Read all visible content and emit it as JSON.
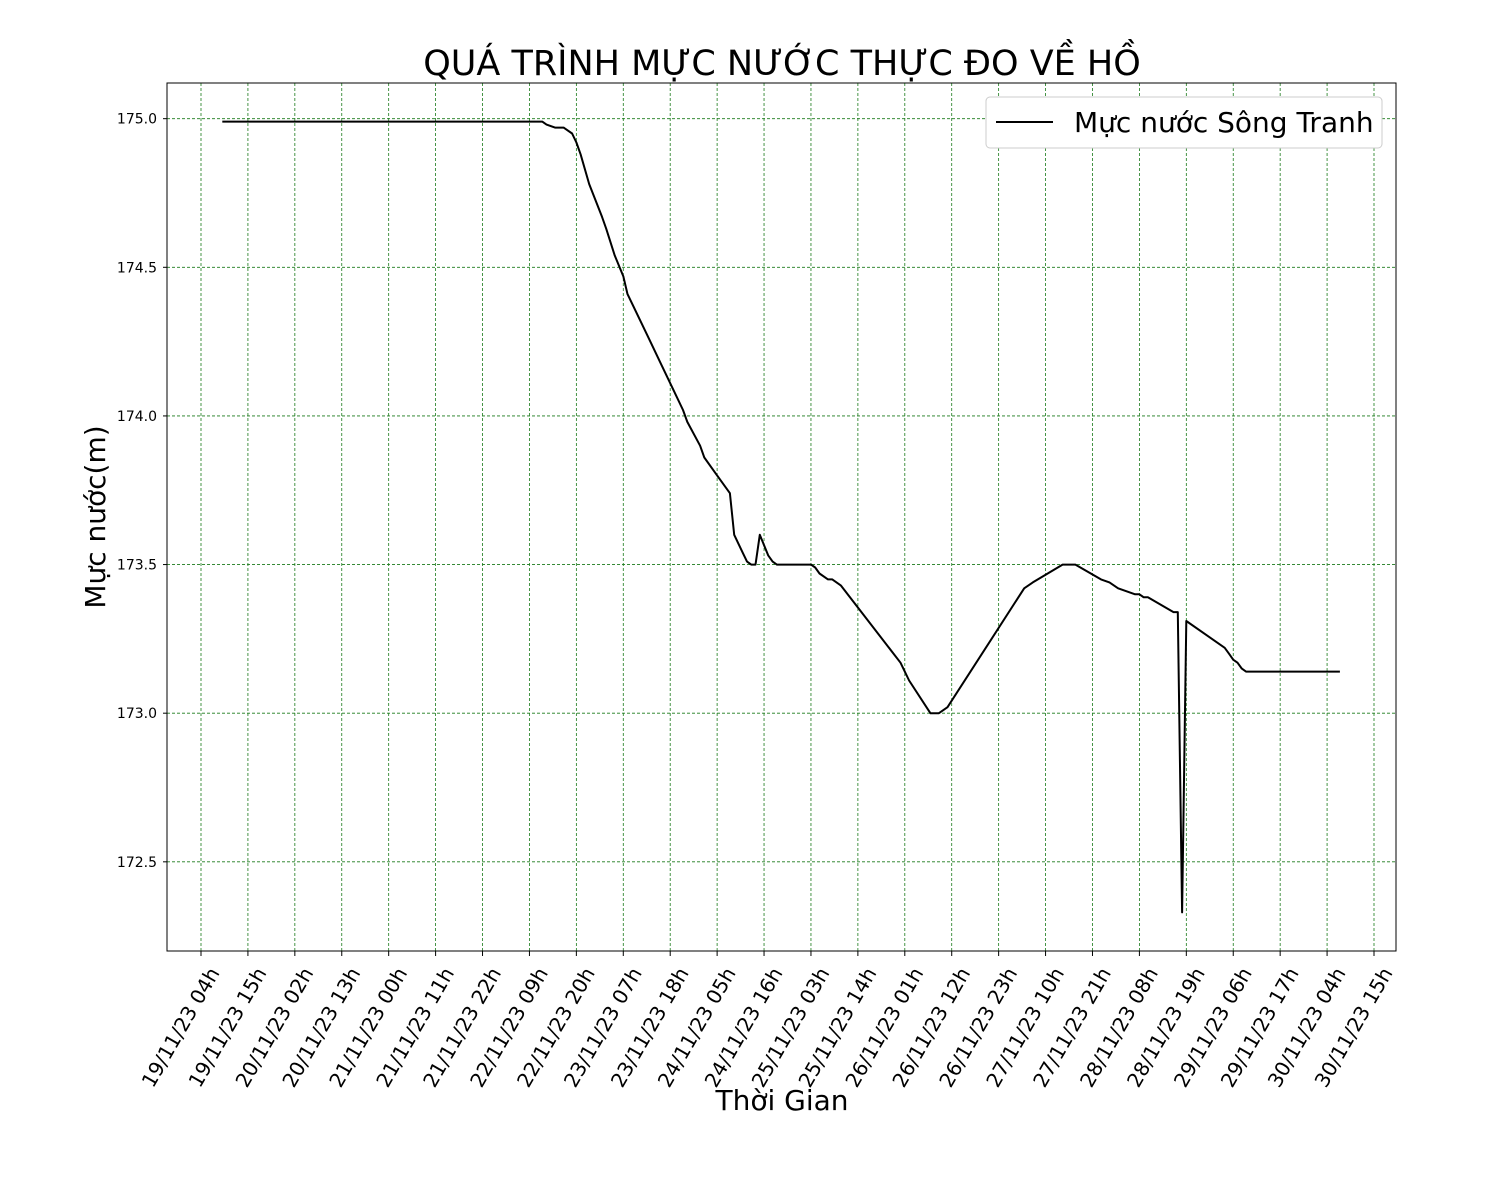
{
  "chart_data": {
    "type": "line",
    "title": "QUÁ TRÌNH MỰC NƯỚC THỰC ĐO VỀ HỒ",
    "xlabel": "Thời Gian",
    "ylabel": "Mực nước(m)",
    "grid": true,
    "grid_color": "#1a7a1a",
    "legend_position": "upper-right",
    "line_color": "#000000",
    "ylim": [
      172.2,
      175.12
    ],
    "yticks": [
      172.5,
      173.0,
      173.5,
      174.0,
      174.5,
      175.0
    ],
    "ytick_labels": [
      "172.5",
      "173.0",
      "173.5",
      "174.0",
      "174.5",
      "175.0"
    ],
    "xtick_labels": [
      "19/11/23 04h",
      "19/11/23 15h",
      "20/11/23 02h",
      "20/11/23 13h",
      "21/11/23 00h",
      "21/11/23 11h",
      "21/11/23 22h",
      "22/11/23 09h",
      "22/11/23 20h",
      "23/11/23 07h",
      "23/11/23 18h",
      "24/11/23 05h",
      "24/11/23 16h",
      "25/11/23 03h",
      "25/11/23 14h",
      "26/11/23 01h",
      "26/11/23 12h",
      "26/11/23 23h",
      "27/11/23 10h",
      "27/11/23 21h",
      "28/11/23 08h",
      "28/11/23 19h",
      "29/11/23 06h",
      "29/11/23 17h",
      "30/11/23 04h",
      "30/11/23 15h"
    ],
    "series": [
      {
        "name": "Mực nước Sông Tranh",
        "points": [
          [
            "19/11/23 09h",
            174.99
          ],
          [
            "22/11/23 12h",
            174.99
          ],
          [
            "22/11/23 13h",
            174.98
          ],
          [
            "22/11/23 15h",
            174.97
          ],
          [
            "22/11/23 17h",
            174.97
          ],
          [
            "22/11/23 19h",
            174.95
          ],
          [
            "22/11/23 20h",
            174.92
          ],
          [
            "22/11/23 21h",
            174.88
          ],
          [
            "22/11/23 23h",
            174.78
          ],
          [
            "23/11/23 02h",
            174.67
          ],
          [
            "23/11/23 03h",
            174.63
          ],
          [
            "23/11/23 05h",
            174.54
          ],
          [
            "23/11/23 07h",
            174.47
          ],
          [
            "23/11/23 08h",
            174.41
          ],
          [
            "23/11/23 10h",
            174.35
          ],
          [
            "23/11/23 13h",
            174.26
          ],
          [
            "23/11/23 16h",
            174.17
          ],
          [
            "23/11/23 19h",
            174.08
          ],
          [
            "23/11/23 21h",
            174.02
          ],
          [
            "23/11/23 22h",
            173.98
          ],
          [
            "24/11/23 01h",
            173.9
          ],
          [
            "24/11/23 02h",
            173.86
          ],
          [
            "24/11/23 05h",
            173.8
          ],
          [
            "24/11/23 08h",
            173.74
          ],
          [
            "24/11/23 09h",
            173.6
          ],
          [
            "24/11/23 11h",
            173.54
          ],
          [
            "24/11/23 12h",
            173.51
          ],
          [
            "24/11/23 13h",
            173.5
          ],
          [
            "24/11/23 14h",
            173.5
          ],
          [
            "24/11/23 15h",
            173.6
          ],
          [
            "24/11/23 17h",
            173.53
          ],
          [
            "24/11/23 18h",
            173.51
          ],
          [
            "24/11/23 19h",
            173.5
          ],
          [
            "25/11/23 03h",
            173.5
          ],
          [
            "25/11/23 04h",
            173.49
          ],
          [
            "25/11/23 05h",
            173.47
          ],
          [
            "25/11/23 07h",
            173.45
          ],
          [
            "25/11/23 08h",
            173.45
          ],
          [
            "25/11/23 10h",
            173.43
          ],
          [
            "26/11/23 00h",
            173.17
          ],
          [
            "26/11/23 02h",
            173.11
          ],
          [
            "26/11/23 07h",
            173.0
          ],
          [
            "26/11/23 09h",
            173.0
          ],
          [
            "26/11/23 11h",
            173.02
          ],
          [
            "27/11/23 05h",
            173.42
          ],
          [
            "27/11/23 07h",
            173.44
          ],
          [
            "27/11/23 14h",
            173.5
          ],
          [
            "27/11/23 17h",
            173.5
          ],
          [
            "27/11/23 23h",
            173.45
          ],
          [
            "28/11/23 01h",
            173.44
          ],
          [
            "28/11/23 03h",
            173.42
          ],
          [
            "28/11/23 05h",
            173.41
          ],
          [
            "28/11/23 07h",
            173.4
          ],
          [
            "28/11/23 08h",
            173.4
          ],
          [
            "28/11/23 09h",
            173.39
          ],
          [
            "28/11/23 10h",
            173.39
          ],
          [
            "28/11/23 16h",
            173.34
          ],
          [
            "28/11/23 17h",
            173.34
          ],
          [
            "28/11/23 18h",
            172.33
          ],
          [
            "28/11/23 19h",
            173.31
          ],
          [
            "29/11/23 04h",
            173.22
          ],
          [
            "29/11/23 05h",
            173.2
          ],
          [
            "29/11/23 06h",
            173.18
          ],
          [
            "29/11/23 07h",
            173.17
          ],
          [
            "29/11/23 08h",
            173.15
          ],
          [
            "29/11/23 09h",
            173.14
          ],
          [
            "30/11/23 07h",
            173.14
          ]
        ]
      }
    ]
  }
}
